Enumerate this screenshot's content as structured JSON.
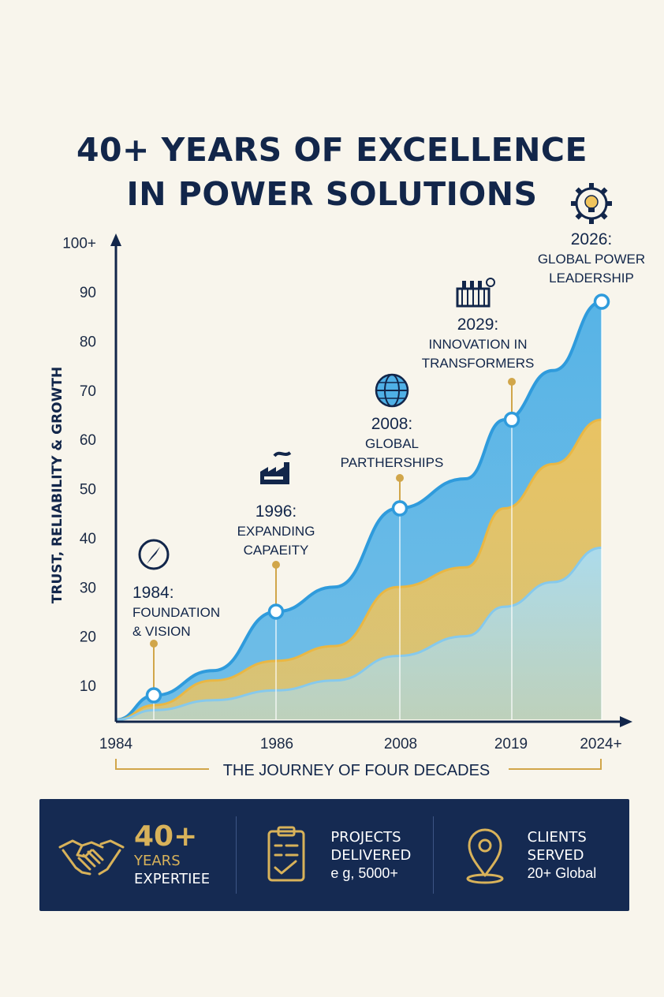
{
  "title": {
    "line1": "40+ YEARS OF EXCELLENCE",
    "line2": "IN POWER SOLUTIONS"
  },
  "chart_data": {
    "type": "area",
    "ylabel": "TRUST, RELIABILITY & GROWTH",
    "xlabel": "THE JOURNEY OF FOUR DECADES",
    "y_ticks": [
      "10",
      "20",
      "30",
      "40",
      "50",
      "60",
      "70",
      "80",
      "90",
      "100+"
    ],
    "y_tick_values": [
      10,
      20,
      30,
      40,
      50,
      60,
      70,
      80,
      90,
      100
    ],
    "x_ticks": [
      "1984",
      "1986",
      "2008",
      "2019",
      "2024+"
    ],
    "ylim": [
      3,
      103
    ],
    "x": [
      0,
      0.08,
      0.2,
      0.33,
      0.45,
      0.58,
      0.72,
      0.8,
      0.9,
      1.0
    ],
    "series": [
      {
        "values": [
          3,
          8,
          13,
          25,
          30,
          46,
          52,
          64,
          74,
          88
        ],
        "color": "#4fb0e6"
      },
      {
        "values": [
          3,
          6,
          11,
          15,
          18,
          30,
          34,
          46,
          55,
          64
        ],
        "color": "#f0c45c"
      },
      {
        "values": [
          3,
          5,
          7,
          9,
          11,
          16,
          20,
          26,
          31,
          38
        ],
        "color": "#a9dcf2"
      }
    ],
    "milestones": [
      {
        "year": "1984:",
        "lines": [
          "FOUNDATION",
          "& VISION"
        ],
        "icon": "compass-icon",
        "value": 8
      },
      {
        "year": "1996:",
        "lines": [
          "EXPANDING",
          "CAPAEITY"
        ],
        "icon": "factory-icon",
        "value": 25
      },
      {
        "year": "2008:",
        "lines": [
          "GLOBAL",
          "PARTHERSHIPS"
        ],
        "icon": "globe-icon",
        "value": 46
      },
      {
        "year": "2029:",
        "lines": [
          "INNOVATION IN",
          "TRANSFORMERS"
        ],
        "icon": "transformer-icon",
        "value": 64
      },
      {
        "year": "2026:",
        "lines": [
          "GLOBAL POWER",
          "LEADERSHIP"
        ],
        "icon": "gear-bulb-icon",
        "value": 88
      }
    ],
    "grid": false,
    "legend": "none"
  },
  "footer": {
    "stat1": {
      "big": "40+",
      "line1": "YEARS",
      "line2": "EXPERTIEE",
      "icon": "handshake-icon"
    },
    "stat2": {
      "line1": "PROJECTS",
      "line2": "DELIVERED",
      "sub": "e g, 5000+",
      "icon": "clipboard-icon"
    },
    "stat3": {
      "line1": "CLIENTS",
      "line2": "SERVED",
      "sub": "20+ Global",
      "icon": "location-pin-icon"
    }
  },
  "colors": {
    "navy": "#12264a",
    "gold": "#d8b25a",
    "blue": "#4fb0e6",
    "yellow": "#f0c45c",
    "light_blue": "#a9dcf2",
    "background": "#f8f5ec"
  }
}
